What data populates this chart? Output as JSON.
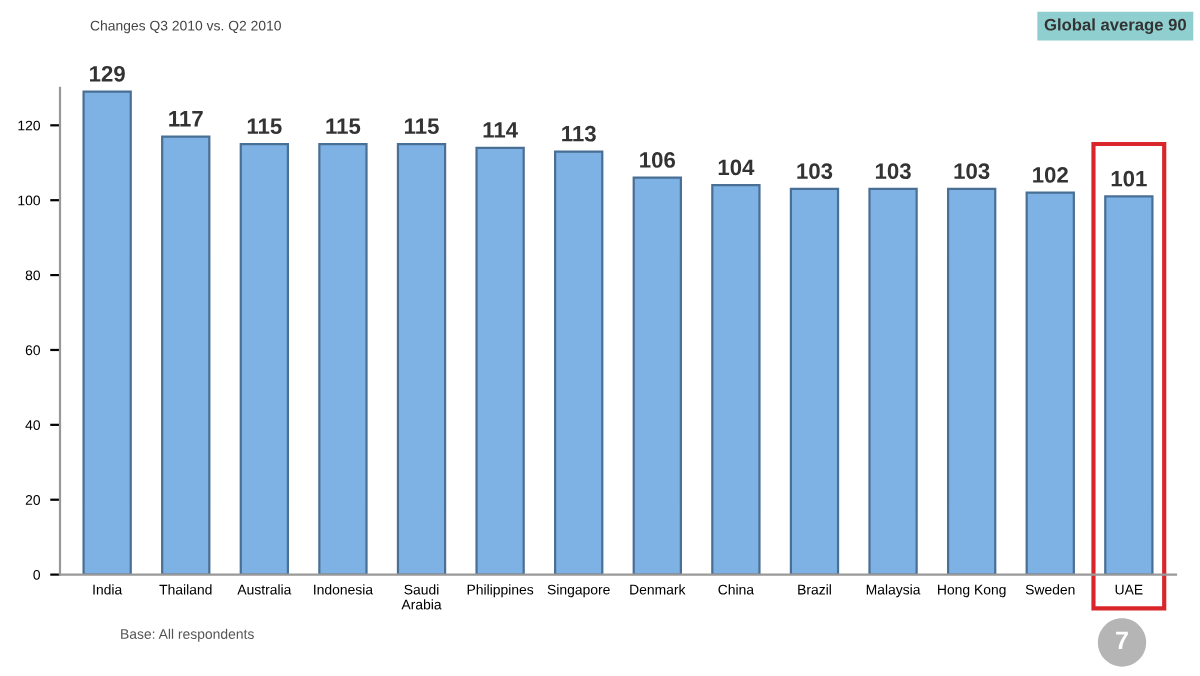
{
  "chart_data": {
    "type": "bar",
    "subtitle": "Changes Q3 2010 vs. Q2 2010",
    "categories": [
      "India",
      "Thailand",
      "Australia",
      "Indonesia",
      "Saudi\nArabia",
      "Philippines",
      "Singapore",
      "Denmark",
      "China",
      "Brazil",
      "Malaysia",
      "Hong Kong",
      "Sweden",
      "UAE"
    ],
    "values": [
      129,
      117,
      115,
      115,
      115,
      114,
      113,
      106,
      104,
      103,
      103,
      103,
      102,
      101
    ],
    "color": "#7eb2e4",
    "data_labels": true,
    "ylim": [
      0,
      130
    ],
    "yticks": [
      0,
      20,
      40,
      60,
      80,
      100,
      120
    ],
    "grid": false,
    "legend": false,
    "annotations": [
      "Global average 90",
      "Base: All respondents",
      "7"
    ]
  }
}
